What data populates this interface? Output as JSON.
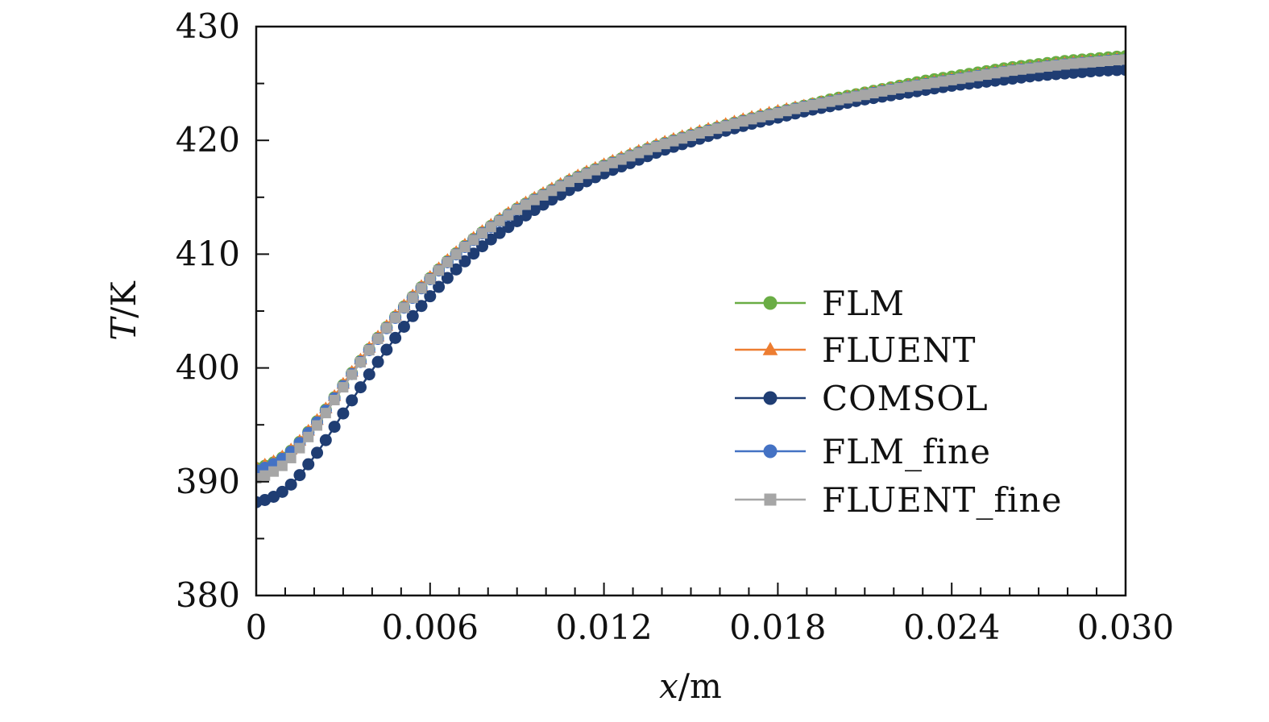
{
  "chart_data": {
    "type": "line",
    "title": "",
    "xlabel": {
      "var": "x",
      "unit": "m"
    },
    "ylabel": {
      "var": "T",
      "unit": "K"
    },
    "xlim": [
      0,
      0.03
    ],
    "ylim": [
      380,
      430
    ],
    "x_ticks": [
      "0",
      "0.006",
      "0.012",
      "0.018",
      "0.024",
      "0.030"
    ],
    "x_tick_values": [
      0,
      0.006,
      0.012,
      0.018,
      0.024,
      0.03
    ],
    "y_ticks": [
      "380",
      "390",
      "400",
      "410",
      "420",
      "430"
    ],
    "y_tick_values": [
      380,
      390,
      400,
      410,
      420,
      430
    ],
    "grid": false,
    "legend_position": "right-center",
    "x": [
      0,
      0.001,
      0.002,
      0.003,
      0.004,
      0.005,
      0.006,
      0.007,
      0.008,
      0.009,
      0.01,
      0.011,
      0.012,
      0.013,
      0.014,
      0.015,
      0.016,
      0.017,
      0.018,
      0.019,
      0.02,
      0.021,
      0.022,
      0.023,
      0.024,
      0.025,
      0.026,
      0.027,
      0.028,
      0.029,
      0.03
    ],
    "series": [
      {
        "name": "FLM",
        "color": "#6aad45",
        "marker": "circle",
        "values": [
          391.2,
          392.3,
          395.0,
          398.5,
          402.0,
          405.1,
          407.9,
          410.3,
          412.3,
          414.0,
          415.4,
          416.7,
          417.8,
          418.8,
          419.7,
          420.5,
          421.2,
          421.9,
          422.5,
          423.1,
          423.7,
          424.2,
          424.7,
          425.2,
          425.6,
          426.0,
          426.4,
          426.7,
          427.0,
          427.2,
          427.4
        ]
      },
      {
        "name": "FLUENT",
        "color": "#ed7d31",
        "marker": "triangle",
        "values": [
          391.3,
          392.4,
          395.1,
          398.6,
          402.1,
          405.2,
          408.0,
          410.4,
          412.4,
          414.1,
          415.5,
          416.8,
          417.9,
          418.9,
          419.8,
          420.6,
          421.3,
          422.0,
          422.6,
          423.1,
          423.6,
          424.1,
          424.6,
          425.0,
          425.4,
          425.8,
          426.2,
          426.5,
          426.8,
          427.0,
          427.2
        ]
      },
      {
        "name": "COMSOL",
        "color": "#1f3d73",
        "marker": "circle",
        "values": [
          388.2,
          389.3,
          392.2,
          396.0,
          399.8,
          403.3,
          406.3,
          408.9,
          411.1,
          412.9,
          414.5,
          415.9,
          417.1,
          418.1,
          419.1,
          419.9,
          420.7,
          421.4,
          422.0,
          422.6,
          423.1,
          423.6,
          424.0,
          424.4,
          424.8,
          425.1,
          425.4,
          425.7,
          425.9,
          426.1,
          426.2
        ]
      },
      {
        "name": "FLM_fine",
        "color": "#4472c4",
        "marker": "circle",
        "values": [
          391.0,
          392.2,
          394.9,
          398.4,
          401.9,
          405.0,
          407.8,
          410.2,
          412.2,
          413.9,
          415.3,
          416.6,
          417.7,
          418.7,
          419.6,
          420.4,
          421.1,
          421.8,
          422.4,
          423.0,
          423.5,
          424.0,
          424.5,
          424.9,
          425.3,
          425.7,
          426.1,
          426.4,
          426.7,
          426.9,
          427.1
        ]
      },
      {
        "name": "FLUENT_fine",
        "color": "#a6a6a6",
        "marker": "square",
        "values": [
          390.3,
          391.6,
          394.6,
          398.3,
          401.9,
          405.0,
          407.8,
          410.2,
          412.2,
          413.9,
          415.3,
          416.6,
          417.7,
          418.7,
          419.6,
          420.4,
          421.1,
          421.8,
          422.4,
          423.0,
          423.5,
          424.0,
          424.5,
          424.9,
          425.3,
          425.7,
          426.1,
          426.4,
          426.7,
          426.9,
          427.1
        ]
      }
    ]
  }
}
